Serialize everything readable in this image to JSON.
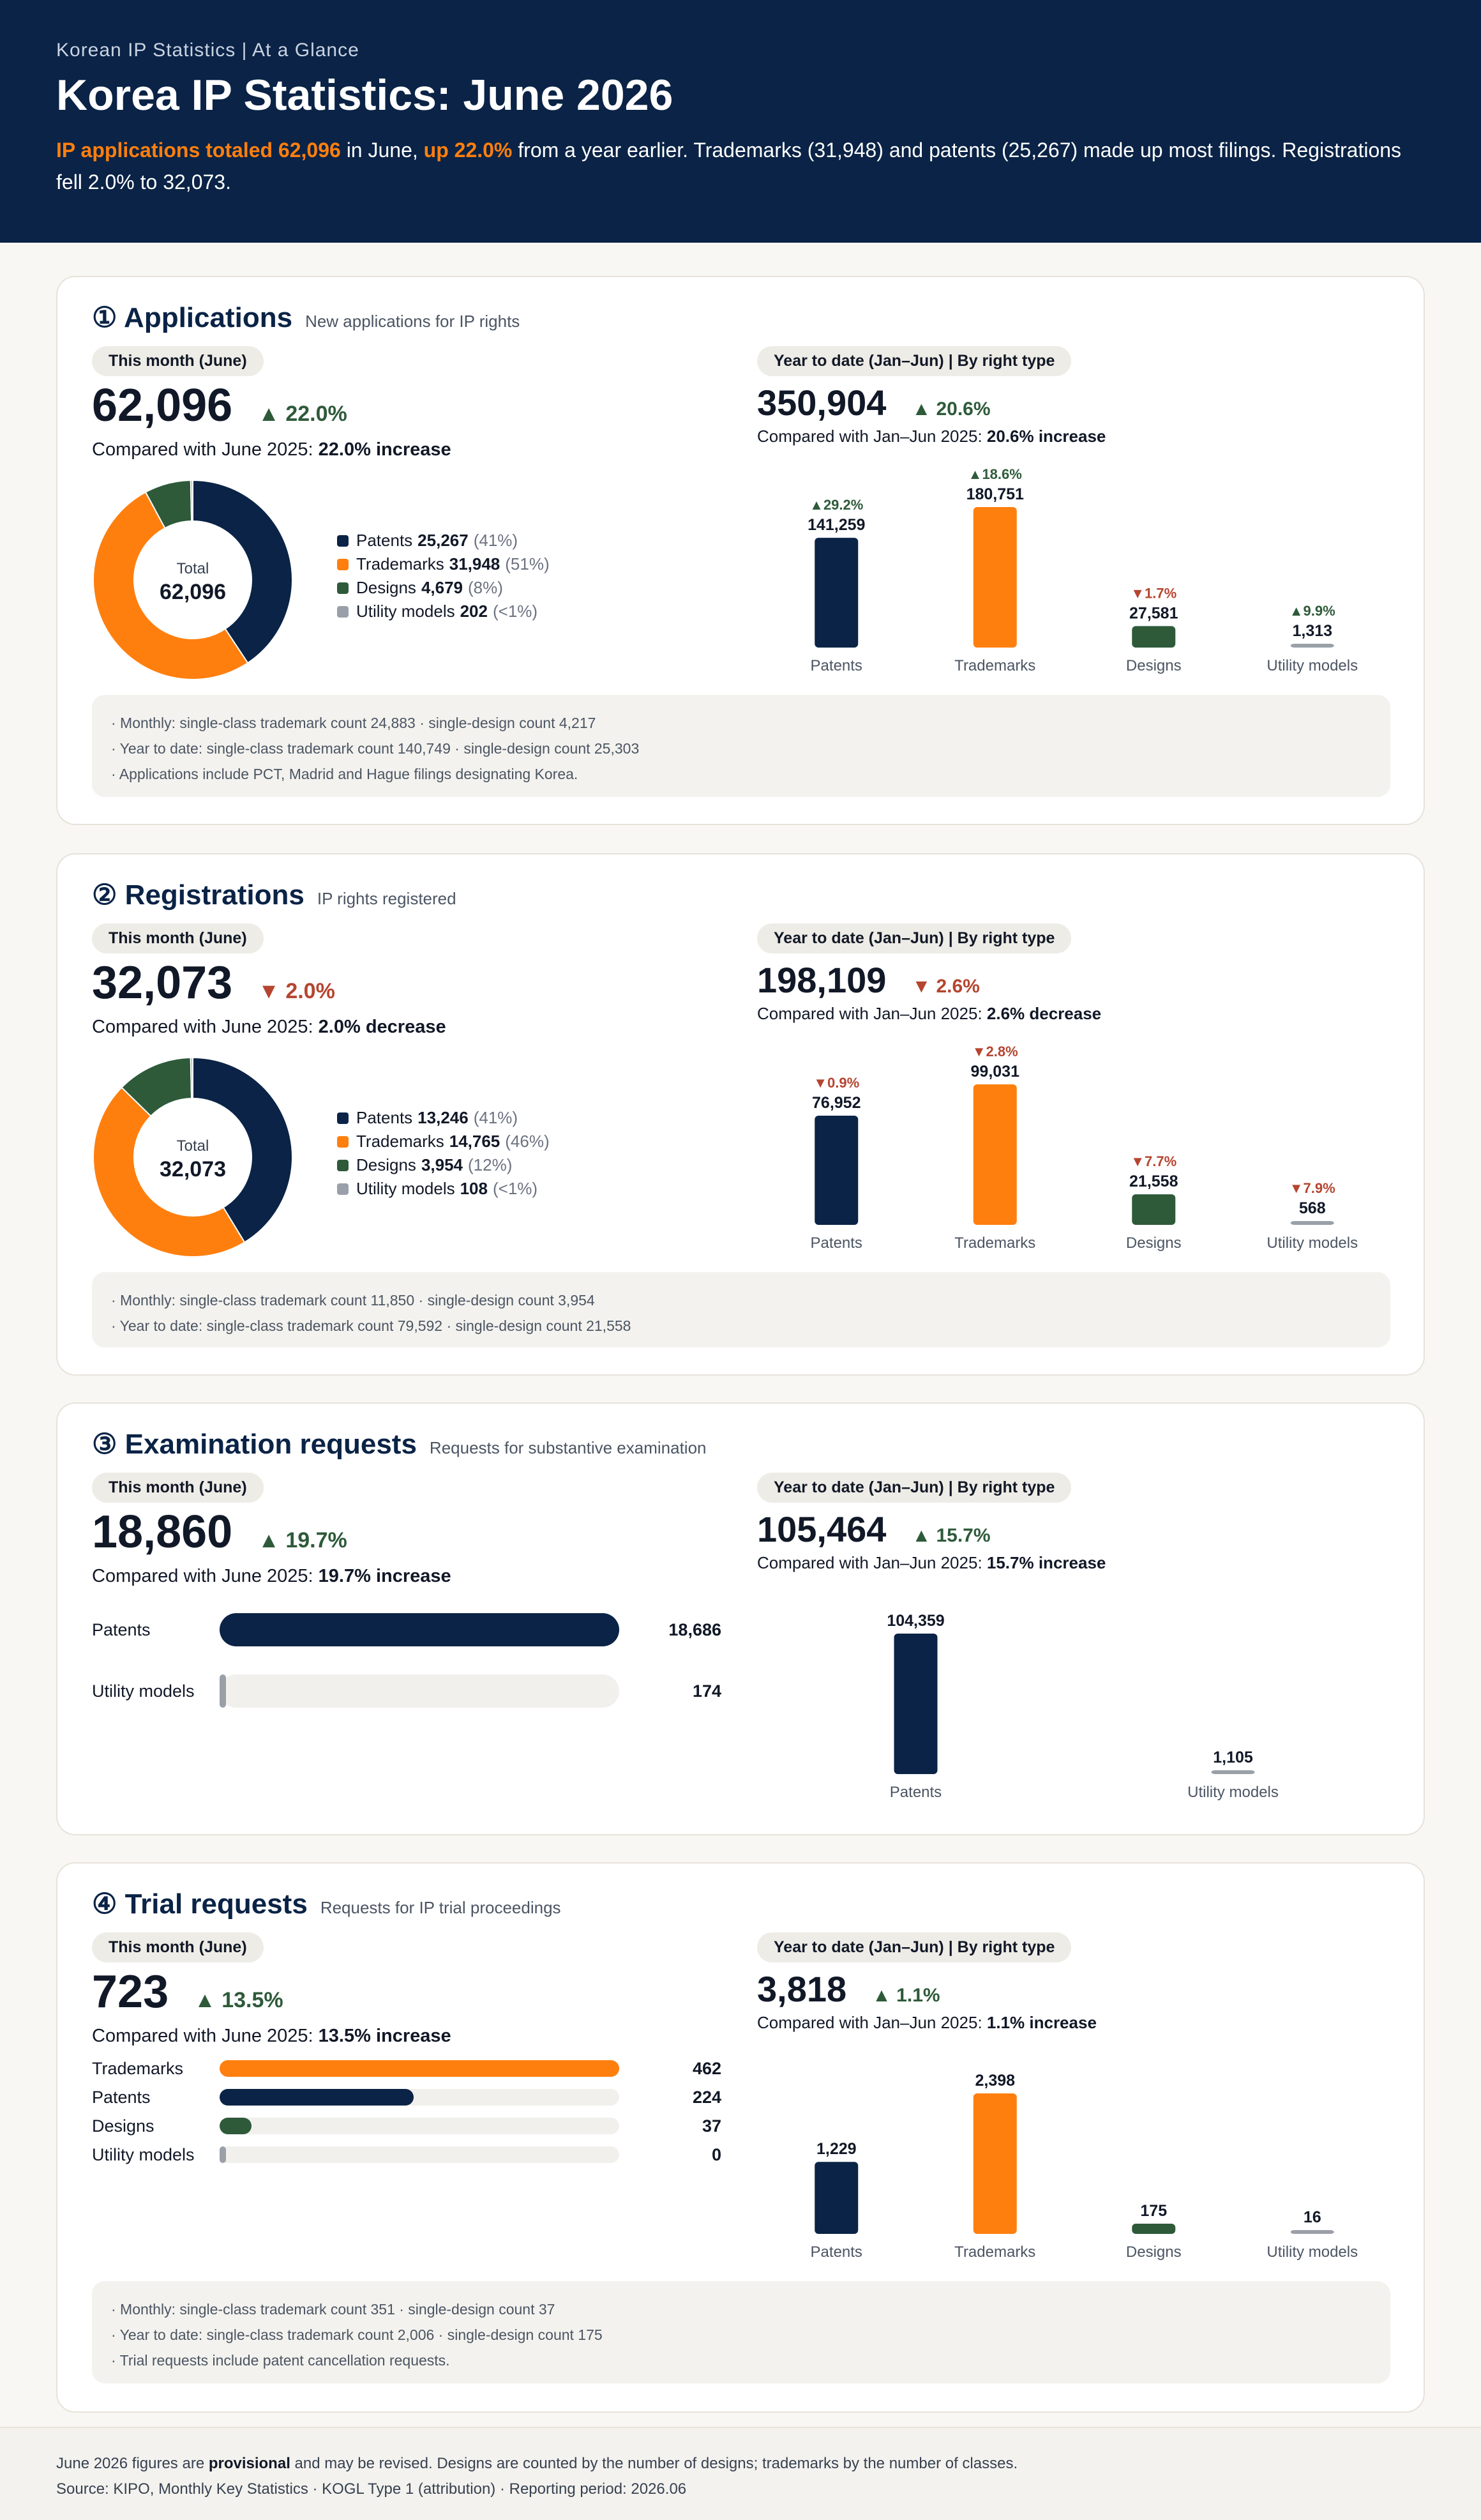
{
  "header": {
    "eyebrow": "Korean IP Statistics | At a Glance",
    "title": "Korea IP Statistics: June 2026",
    "lede_hl1": "IP applications totaled 62,096",
    "lede_t1": " in June, ",
    "lede_hl2": "up 22.0%",
    "lede_t2": " from a year earlier. Trademarks (31,948) and patents (25,267) made up most filings. Registrations fell 2.0% to 32,073."
  },
  "colors": {
    "patents": "#0a2346",
    "trademarks": "#ff7f0e",
    "designs": "#2e5a3a",
    "utility": "#9aa0a8",
    "up": "#2e5a3a",
    "down": "#b5452f"
  },
  "common": {
    "month_pill": "This month (June)",
    "ytd_pill": "Year to date (Jan–Jun) | By right type",
    "total_label": "Total"
  },
  "applications": {
    "title": "① Applications",
    "subtitle": "New applications for IP rights",
    "month_value": "62,096",
    "month_change": "▲ 22.0%",
    "month_cmp_pre": "Compared with June 2025: ",
    "month_cmp_b": "22.0% increase",
    "ytd_value": "350,904",
    "ytd_change": "▲ 20.6%",
    "ytd_cmp_pre": "Compared with Jan–Jun 2025: ",
    "ytd_cmp_b": "20.6% increase",
    "donut_total": "62,096",
    "legend": [
      {
        "name": "Patents",
        "value": "25,267",
        "pct": "(41%)"
      },
      {
        "name": "Trademarks",
        "value": "31,948",
        "pct": "(51%)"
      },
      {
        "name": "Designs",
        "value": "4,679",
        "pct": "(8%)"
      },
      {
        "name": "Utility models",
        "value": "202",
        "pct": "(<1%)"
      }
    ],
    "notes": [
      "· Monthly: single-class trademark count 24,883 · single-design count 4,217",
      "· Year to date: single-class trademark count 140,749 · single-design count 25,303",
      "· Applications include PCT, Madrid and Hague filings designating Korea."
    ]
  },
  "registrations": {
    "title": "② Registrations",
    "subtitle": "IP rights registered",
    "month_value": "32,073",
    "month_change": "▼ 2.0%",
    "month_cmp_pre": "Compared with June 2025: ",
    "month_cmp_b": "2.0% decrease",
    "ytd_value": "198,109",
    "ytd_change": "▼ 2.6%",
    "ytd_cmp_pre": "Compared with Jan–Jun 2025: ",
    "ytd_cmp_b": "2.6% decrease",
    "donut_total": "32,073",
    "legend": [
      {
        "name": "Patents",
        "value": "13,246",
        "pct": "(41%)"
      },
      {
        "name": "Trademarks",
        "value": "14,765",
        "pct": "(46%)"
      },
      {
        "name": "Designs",
        "value": "3,954",
        "pct": "(12%)"
      },
      {
        "name": "Utility models",
        "value": "108",
        "pct": "(<1%)"
      }
    ],
    "notes": [
      "· Monthly: single-class trademark count 11,850 · single-design count 3,954",
      "· Year to date: single-class trademark count 79,592 · single-design count 21,558"
    ]
  },
  "examination": {
    "title": "③ Examination requests",
    "subtitle": "Requests for substantive examination",
    "month_value": "18,860",
    "month_change": "▲ 19.7%",
    "month_cmp_pre": "Compared with June 2025: ",
    "month_cmp_b": "19.7% increase",
    "ytd_value": "105,464",
    "ytd_change": "▲ 15.7%",
    "ytd_cmp_pre": "Compared with Jan–Jun 2025: ",
    "ytd_cmp_b": "15.7% increase"
  },
  "trials": {
    "title": "④ Trial requests",
    "subtitle": "Requests for IP trial proceedings",
    "month_value": "723",
    "month_change": "▲ 13.5%",
    "month_cmp_pre": "Compared with June 2025: ",
    "month_cmp_b": "13.5% increase",
    "ytd_value": "3,818",
    "ytd_change": "▲ 1.1%",
    "ytd_cmp_pre": "Compared with Jan–Jun 2025: ",
    "ytd_cmp_b": "1.1% increase",
    "notes": [
      "· Monthly: single-class trademark count 351 · single-design count 37",
      "· Year to date: single-class trademark count 2,006 · single-design count 175",
      "· Trial requests include patent cancellation requests."
    ]
  },
  "footer": {
    "line1_pre": "June 2026 figures are ",
    "line1_b": "provisional",
    "line1_post": " and may be revised. Designs are counted by the number of designs; trademarks by the number of classes.",
    "line2": "Source: KIPO, Monthly Key Statistics · KOGL Type 1 (attribution) · Reporting period: 2026.06"
  },
  "chart_data": [
    {
      "type": "pie",
      "section": "applications",
      "categories": [
        "Patents",
        "Trademarks",
        "Designs",
        "Utility models"
      ],
      "values": [
        25267,
        31948,
        4679,
        202
      ]
    },
    {
      "type": "bar",
      "section": "applications",
      "categories": [
        "Patents",
        "Trademarks",
        "Designs",
        "Utility models"
      ],
      "values": [
        141259,
        180751,
        27581,
        1313
      ],
      "changes": [
        "▲29.2%",
        "▲18.6%",
        "▼1.7%",
        "▲9.9%"
      ],
      "directions": [
        "up",
        "up",
        "down",
        "up"
      ]
    },
    {
      "type": "pie",
      "section": "registrations",
      "categories": [
        "Patents",
        "Trademarks",
        "Designs",
        "Utility models"
      ],
      "values": [
        13246,
        14765,
        3954,
        108
      ]
    },
    {
      "type": "bar",
      "section": "registrations",
      "categories": [
        "Patents",
        "Trademarks",
        "Designs",
        "Utility models"
      ],
      "values": [
        76952,
        99031,
        21558,
        568
      ],
      "changes": [
        "▼0.9%",
        "▼2.8%",
        "▼7.7%",
        "▼7.9%"
      ],
      "directions": [
        "down",
        "down",
        "down",
        "down"
      ]
    },
    {
      "type": "bar",
      "orientation": "horizontal",
      "section": "examination-month",
      "categories": [
        "Patents",
        "Utility models"
      ],
      "values": [
        18686,
        174
      ]
    },
    {
      "type": "bar",
      "section": "examination-ytd",
      "categories": [
        "Patents",
        "Utility models"
      ],
      "values": [
        104359,
        1105
      ]
    },
    {
      "type": "bar",
      "orientation": "horizontal",
      "section": "trials-month",
      "categories": [
        "Trademarks",
        "Patents",
        "Designs",
        "Utility models"
      ],
      "values": [
        462,
        224,
        37,
        0
      ]
    },
    {
      "type": "bar",
      "section": "trials-ytd",
      "categories": [
        "Patents",
        "Trademarks",
        "Designs",
        "Utility models"
      ],
      "values": [
        1229,
        2398,
        175,
        16
      ]
    }
  ]
}
